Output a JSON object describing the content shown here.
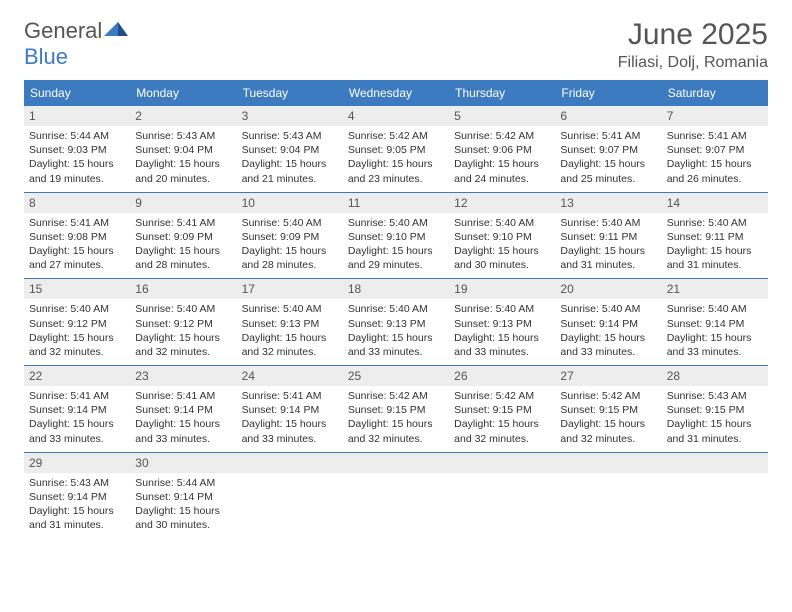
{
  "brand": {
    "word1": "General",
    "word2": "Blue"
  },
  "title": "June 2025",
  "location": "Filiasi, Dolj, Romania",
  "colors": {
    "accent": "#3d7bc0",
    "header_text": "#ffffff",
    "daynum_bg": "#ededed",
    "text": "#333333",
    "title_text": "#555555"
  },
  "day_headers": [
    "Sunday",
    "Monday",
    "Tuesday",
    "Wednesday",
    "Thursday",
    "Friday",
    "Saturday"
  ],
  "weeks": [
    [
      {
        "n": "1",
        "lines": [
          "Sunrise: 5:44 AM",
          "Sunset: 9:03 PM",
          "Daylight: 15 hours and 19 minutes."
        ]
      },
      {
        "n": "2",
        "lines": [
          "Sunrise: 5:43 AM",
          "Sunset: 9:04 PM",
          "Daylight: 15 hours and 20 minutes."
        ]
      },
      {
        "n": "3",
        "lines": [
          "Sunrise: 5:43 AM",
          "Sunset: 9:04 PM",
          "Daylight: 15 hours and 21 minutes."
        ]
      },
      {
        "n": "4",
        "lines": [
          "Sunrise: 5:42 AM",
          "Sunset: 9:05 PM",
          "Daylight: 15 hours and 23 minutes."
        ]
      },
      {
        "n": "5",
        "lines": [
          "Sunrise: 5:42 AM",
          "Sunset: 9:06 PM",
          "Daylight: 15 hours and 24 minutes."
        ]
      },
      {
        "n": "6",
        "lines": [
          "Sunrise: 5:41 AM",
          "Sunset: 9:07 PM",
          "Daylight: 15 hours and 25 minutes."
        ]
      },
      {
        "n": "7",
        "lines": [
          "Sunrise: 5:41 AM",
          "Sunset: 9:07 PM",
          "Daylight: 15 hours and 26 minutes."
        ]
      }
    ],
    [
      {
        "n": "8",
        "lines": [
          "Sunrise: 5:41 AM",
          "Sunset: 9:08 PM",
          "Daylight: 15 hours and 27 minutes."
        ]
      },
      {
        "n": "9",
        "lines": [
          "Sunrise: 5:41 AM",
          "Sunset: 9:09 PM",
          "Daylight: 15 hours and 28 minutes."
        ]
      },
      {
        "n": "10",
        "lines": [
          "Sunrise: 5:40 AM",
          "Sunset: 9:09 PM",
          "Daylight: 15 hours and 28 minutes."
        ]
      },
      {
        "n": "11",
        "lines": [
          "Sunrise: 5:40 AM",
          "Sunset: 9:10 PM",
          "Daylight: 15 hours and 29 minutes."
        ]
      },
      {
        "n": "12",
        "lines": [
          "Sunrise: 5:40 AM",
          "Sunset: 9:10 PM",
          "Daylight: 15 hours and 30 minutes."
        ]
      },
      {
        "n": "13",
        "lines": [
          "Sunrise: 5:40 AM",
          "Sunset: 9:11 PM",
          "Daylight: 15 hours and 31 minutes."
        ]
      },
      {
        "n": "14",
        "lines": [
          "Sunrise: 5:40 AM",
          "Sunset: 9:11 PM",
          "Daylight: 15 hours and 31 minutes."
        ]
      }
    ],
    [
      {
        "n": "15",
        "lines": [
          "Sunrise: 5:40 AM",
          "Sunset: 9:12 PM",
          "Daylight: 15 hours and 32 minutes."
        ]
      },
      {
        "n": "16",
        "lines": [
          "Sunrise: 5:40 AM",
          "Sunset: 9:12 PM",
          "Daylight: 15 hours and 32 minutes."
        ]
      },
      {
        "n": "17",
        "lines": [
          "Sunrise: 5:40 AM",
          "Sunset: 9:13 PM",
          "Daylight: 15 hours and 32 minutes."
        ]
      },
      {
        "n": "18",
        "lines": [
          "Sunrise: 5:40 AM",
          "Sunset: 9:13 PM",
          "Daylight: 15 hours and 33 minutes."
        ]
      },
      {
        "n": "19",
        "lines": [
          "Sunrise: 5:40 AM",
          "Sunset: 9:13 PM",
          "Daylight: 15 hours and 33 minutes."
        ]
      },
      {
        "n": "20",
        "lines": [
          "Sunrise: 5:40 AM",
          "Sunset: 9:14 PM",
          "Daylight: 15 hours and 33 minutes."
        ]
      },
      {
        "n": "21",
        "lines": [
          "Sunrise: 5:40 AM",
          "Sunset: 9:14 PM",
          "Daylight: 15 hours and 33 minutes."
        ]
      }
    ],
    [
      {
        "n": "22",
        "lines": [
          "Sunrise: 5:41 AM",
          "Sunset: 9:14 PM",
          "Daylight: 15 hours and 33 minutes."
        ]
      },
      {
        "n": "23",
        "lines": [
          "Sunrise: 5:41 AM",
          "Sunset: 9:14 PM",
          "Daylight: 15 hours and 33 minutes."
        ]
      },
      {
        "n": "24",
        "lines": [
          "Sunrise: 5:41 AM",
          "Sunset: 9:14 PM",
          "Daylight: 15 hours and 33 minutes."
        ]
      },
      {
        "n": "25",
        "lines": [
          "Sunrise: 5:42 AM",
          "Sunset: 9:15 PM",
          "Daylight: 15 hours and 32 minutes."
        ]
      },
      {
        "n": "26",
        "lines": [
          "Sunrise: 5:42 AM",
          "Sunset: 9:15 PM",
          "Daylight: 15 hours and 32 minutes."
        ]
      },
      {
        "n": "27",
        "lines": [
          "Sunrise: 5:42 AM",
          "Sunset: 9:15 PM",
          "Daylight: 15 hours and 32 minutes."
        ]
      },
      {
        "n": "28",
        "lines": [
          "Sunrise: 5:43 AM",
          "Sunset: 9:15 PM",
          "Daylight: 15 hours and 31 minutes."
        ]
      }
    ],
    [
      {
        "n": "29",
        "lines": [
          "Sunrise: 5:43 AM",
          "Sunset: 9:14 PM",
          "Daylight: 15 hours and 31 minutes."
        ]
      },
      {
        "n": "30",
        "lines": [
          "Sunrise: 5:44 AM",
          "Sunset: 9:14 PM",
          "Daylight: 15 hours and 30 minutes."
        ]
      },
      {
        "n": "",
        "lines": []
      },
      {
        "n": "",
        "lines": []
      },
      {
        "n": "",
        "lines": []
      },
      {
        "n": "",
        "lines": []
      },
      {
        "n": "",
        "lines": []
      }
    ]
  ]
}
